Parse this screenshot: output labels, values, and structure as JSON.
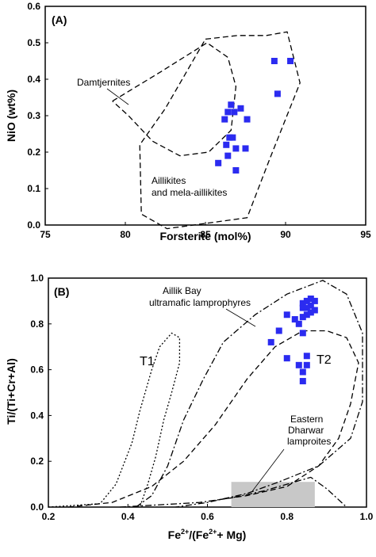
{
  "colors": {
    "point": "#2b2bf0",
    "box_fill": "#c8c8c8",
    "frame": "#000000"
  },
  "chart_data": [
    {
      "type": "scatter",
      "panel_label": "(A)",
      "xlabel": "Forsterite (mol%)",
      "ylabel": "NiO (wt%)",
      "xlim": [
        75,
        95
      ],
      "ylim": [
        0.0,
        0.6
      ],
      "xticks": [
        "75",
        "80",
        "85",
        "90",
        "95"
      ],
      "yticks": [
        "0.0",
        "0.1",
        "0.2",
        "0.3",
        "0.4",
        "0.5",
        "0.6"
      ],
      "annotations": [
        {
          "id": "damtjernites",
          "lines": [
            "Damtjernites"
          ]
        },
        {
          "id": "aillikites",
          "lines": [
            "Aillikites",
            "and mela-aillikites"
          ]
        }
      ],
      "fields": [
        {
          "id": "damtjernites",
          "style": "dashed",
          "points": [
            [
              79.2,
              0.34
            ],
            [
              82.2,
              0.42
            ],
            [
              85.1,
              0.5
            ],
            [
              86.4,
              0.46
            ],
            [
              86.9,
              0.38
            ],
            [
              86.6,
              0.26
            ],
            [
              85.2,
              0.2
            ],
            [
              83.4,
              0.19
            ],
            [
              81.7,
              0.23
            ],
            [
              80.2,
              0.3
            ],
            [
              79.2,
              0.34
            ]
          ]
        },
        {
          "id": "aillikites",
          "style": "dashed",
          "points": [
            [
              85.0,
              0.51
            ],
            [
              87.0,
              0.52
            ],
            [
              88.8,
              0.52
            ],
            [
              90.1,
              0.53
            ],
            [
              90.9,
              0.39
            ],
            [
              89.0,
              0.18
            ],
            [
              87.6,
              0.02
            ],
            [
              82.6,
              -0.01
            ],
            [
              81.0,
              0.03
            ],
            [
              80.9,
              0.22
            ],
            [
              82.5,
              0.32
            ],
            [
              85.0,
              0.51
            ]
          ]
        }
      ],
      "series": [
        {
          "x": [
            89.3,
            90.3,
            89.5,
            86.4,
            86.6,
            86.8,
            87.2,
            87.6,
            86.2,
            86.5,
            86.7,
            86.3,
            86.9,
            87.5,
            86.4,
            85.8,
            86.9
          ],
          "y": [
            0.45,
            0.45,
            0.36,
            0.31,
            0.33,
            0.31,
            0.32,
            0.29,
            0.29,
            0.24,
            0.24,
            0.22,
            0.21,
            0.21,
            0.19,
            0.17,
            0.15
          ]
        }
      ]
    },
    {
      "type": "scatter",
      "panel_label": "(B)",
      "xlabel": "Fe2+/(Fe2+ + Mg)",
      "ylabel": "Ti/(Ti+Cr+Al)",
      "xlim": [
        0.2,
        1.0
      ],
      "ylim": [
        0.0,
        1.0
      ],
      "xticks": [
        "0.2",
        "0.4",
        "0.6",
        "0.8",
        "1.0"
      ],
      "yticks": [
        "0.0",
        "0.2",
        "0.4",
        "0.6",
        "0.8",
        "1.0"
      ],
      "annotations": [
        {
          "id": "aillik",
          "lines": [
            "Aillik Bay",
            "ultramafic lamprophyres"
          ]
        },
        {
          "id": "t1",
          "lines": [
            "T1"
          ]
        },
        {
          "id": "t2",
          "lines": [
            "T2"
          ]
        },
        {
          "id": "eastern",
          "lines": [
            "Eastern",
            "Dharwar",
            "lamproites"
          ]
        }
      ],
      "fields": [
        {
          "id": "T1",
          "style": "dotted",
          "points": [
            [
              0.2,
              0.0
            ],
            [
              0.33,
              0.015
            ],
            [
              0.37,
              0.1
            ],
            [
              0.41,
              0.28
            ],
            [
              0.43,
              0.42
            ],
            [
              0.46,
              0.6
            ],
            [
              0.48,
              0.7
            ],
            [
              0.51,
              0.76
            ],
            [
              0.53,
              0.74
            ],
            [
              0.53,
              0.63
            ],
            [
              0.51,
              0.5
            ],
            [
              0.49,
              0.38
            ],
            [
              0.47,
              0.22
            ],
            [
              0.45,
              0.1
            ],
            [
              0.43,
              0.0
            ]
          ]
        },
        {
          "id": "Aillik Bay ultramafic lamprophyres",
          "style": "dashdot",
          "points": [
            [
              0.42,
              0.0
            ],
            [
              0.46,
              0.05
            ],
            [
              0.5,
              0.18
            ],
            [
              0.54,
              0.38
            ],
            [
              0.59,
              0.56
            ],
            [
              0.64,
              0.72
            ],
            [
              0.72,
              0.84
            ],
            [
              0.8,
              0.93
            ],
            [
              0.89,
              0.99
            ],
            [
              0.95,
              0.93
            ],
            [
              0.99,
              0.76
            ],
            [
              0.99,
              0.46
            ],
            [
              0.96,
              0.3
            ],
            [
              0.88,
              0.18
            ],
            [
              0.78,
              0.11
            ],
            [
              0.7,
              0.06
            ],
            [
              0.6,
              0.02
            ],
            [
              0.52,
              0.0
            ]
          ]
        },
        {
          "id": "T2",
          "style": "dashed",
          "points": [
            [
              0.25,
              0.0
            ],
            [
              0.36,
              0.02
            ],
            [
              0.46,
              0.09
            ],
            [
              0.54,
              0.2
            ],
            [
              0.62,
              0.36
            ],
            [
              0.7,
              0.56
            ],
            [
              0.77,
              0.7
            ],
            [
              0.84,
              0.77
            ],
            [
              0.9,
              0.77
            ],
            [
              0.95,
              0.74
            ],
            [
              0.98,
              0.63
            ],
            [
              0.96,
              0.45
            ],
            [
              0.93,
              0.3
            ],
            [
              0.88,
              0.18
            ],
            [
              0.8,
              0.09
            ],
            [
              0.7,
              0.05
            ],
            [
              0.62,
              0.03
            ]
          ]
        },
        {
          "id": "Eastern Dharwar lamproites",
          "style": "dashdot",
          "points": [
            [
              0.38,
              0.0
            ],
            [
              0.48,
              0.01
            ],
            [
              0.58,
              0.02
            ],
            [
              0.66,
              0.04
            ],
            [
              0.74,
              0.07
            ],
            [
              0.82,
              0.11
            ],
            [
              0.86,
              0.13
            ],
            [
              0.9,
              0.08
            ],
            [
              0.95,
              0.0
            ]
          ]
        }
      ],
      "box": {
        "x": [
          0.66,
          0.87
        ],
        "y": [
          0.0,
          0.11
        ]
      },
      "series": [
        {
          "x": [
            0.86,
            0.85,
            0.87,
            0.84,
            0.86,
            0.85,
            0.87,
            0.84,
            0.86,
            0.85,
            0.84,
            0.8,
            0.82,
            0.83,
            0.78,
            0.84,
            0.76,
            0.85,
            0.8,
            0.85,
            0.84,
            0.83,
            0.84
          ],
          "y": [
            0.91,
            0.9,
            0.9,
            0.89,
            0.88,
            0.87,
            0.86,
            0.87,
            0.85,
            0.84,
            0.83,
            0.84,
            0.82,
            0.8,
            0.77,
            0.76,
            0.72,
            0.66,
            0.65,
            0.62,
            0.59,
            0.62,
            0.55
          ]
        }
      ]
    }
  ]
}
